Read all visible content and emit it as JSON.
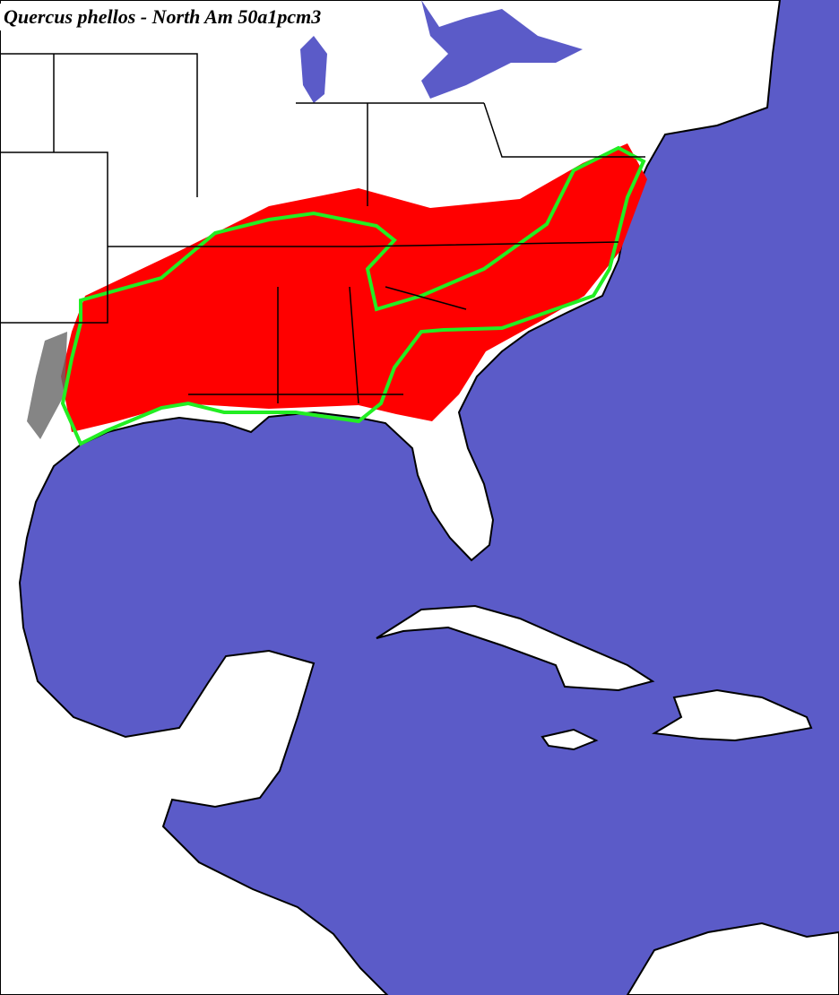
{
  "title": "Quercus phellos - North Am 50a1pcm3"
}
